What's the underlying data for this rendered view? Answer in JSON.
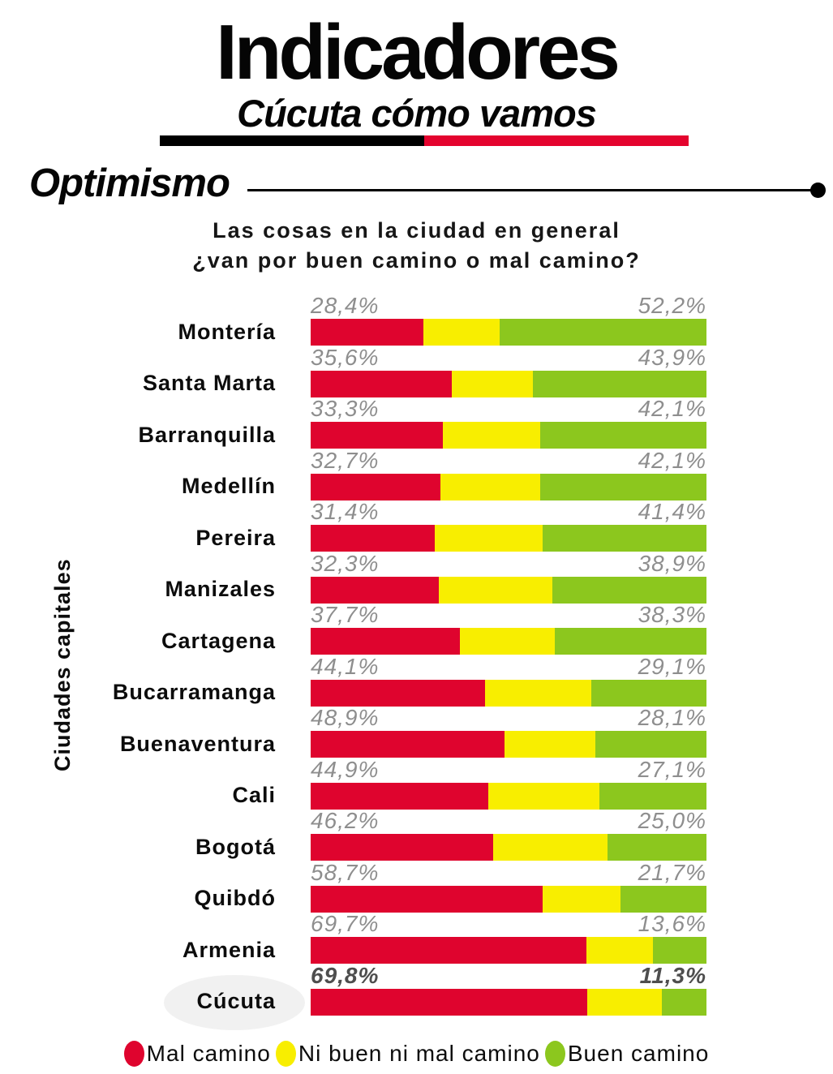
{
  "header": {
    "title": "Indicadores",
    "subtitle": "Cúcuta cómo vamos"
  },
  "section": {
    "title": "Optimismo"
  },
  "question": {
    "line1": "Las cosas en la ciudad en general",
    "line2": "¿van por buen camino o mal camino?"
  },
  "axis": {
    "y_label": "Ciudades capitales"
  },
  "colors": {
    "mal": "#df042e",
    "ni": "#f8ee00",
    "buen": "#8cc71e",
    "divider_black": "#000000",
    "divider_red": "#e4032e",
    "label_gray": "#8e8e8e",
    "highlight_gray": "#f1f1f1"
  },
  "chart_data": {
    "type": "bar",
    "stacked": true,
    "orientation": "horizontal",
    "title": "Las cosas en la ciudad en general ¿van por buen camino o mal camino?",
    "ylabel": "Ciudades capitales",
    "xlim": [
      0,
      100
    ],
    "legend_position": "bottom",
    "highlighted_category": "Cúcuta",
    "categories": [
      "Montería",
      "Santa Marta",
      "Barranquilla",
      "Medellín",
      "Pereira",
      "Manizales",
      "Cartagena",
      "Bucarramanga",
      "Buenaventura",
      "Cali",
      "Bogotá",
      "Quibdó",
      "Armenia",
      "Cúcuta"
    ],
    "series": [
      {
        "name": "Mal camino",
        "color": "#df042e",
        "values": [
          28.4,
          35.6,
          33.3,
          32.7,
          31.4,
          32.3,
          37.7,
          44.1,
          48.9,
          44.9,
          46.2,
          58.7,
          69.7,
          69.8
        ]
      },
      {
        "name": "Ni buen ni mal camino",
        "color": "#f8ee00",
        "values": [
          19.4,
          20.5,
          24.6,
          25.2,
          27.2,
          28.8,
          24.0,
          26.8,
          23.0,
          28.0,
          28.8,
          19.6,
          16.7,
          18.9
        ]
      },
      {
        "name": "Buen camino",
        "color": "#8cc71e",
        "values": [
          52.2,
          43.9,
          42.1,
          42.1,
          41.4,
          38.9,
          38.3,
          29.1,
          28.1,
          27.1,
          25.0,
          21.7,
          13.6,
          11.3
        ]
      }
    ],
    "value_labels": {
      "mal": [
        "28,4%",
        "35,6%",
        "33,3%",
        "32,7%",
        "31,4%",
        "32,3%",
        "37,7%",
        "44,1%",
        "48,9%",
        "44,9%",
        "46,2%",
        "58,7%",
        "69,7%",
        "69,8%"
      ],
      "buen": [
        "52,2%",
        "43,9%",
        "42,1%",
        "42,1%",
        "41,4%",
        "38,9%",
        "38,3%",
        "29,1%",
        "28,1%",
        "27,1%",
        "25,0%",
        "21,7%",
        "13,6%",
        "11,3%"
      ]
    }
  },
  "legend": {
    "items": [
      {
        "label": "Mal camino",
        "color": "#df042e"
      },
      {
        "label": "Ni buen ni mal camino",
        "color": "#f8ee00"
      },
      {
        "label": "Buen camino",
        "color": "#8cc71e"
      }
    ]
  }
}
